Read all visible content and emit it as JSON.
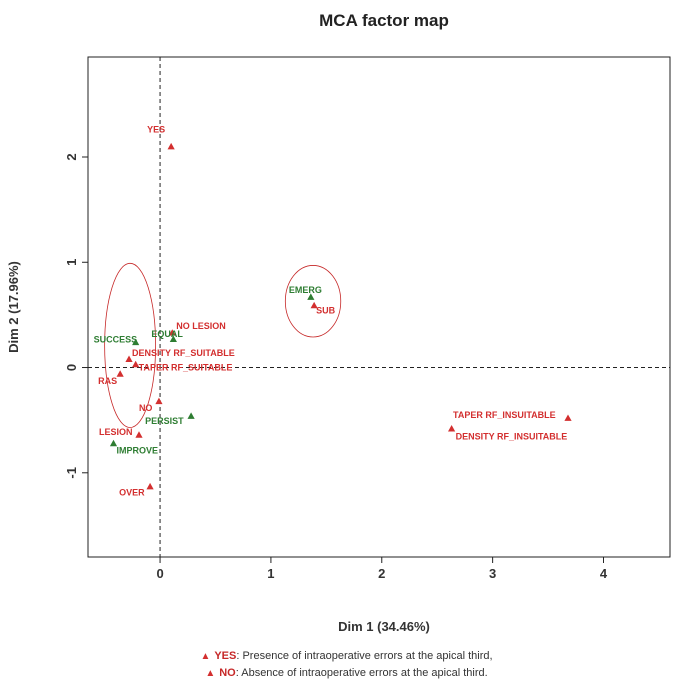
{
  "chart_data": {
    "type": "scatter",
    "title": "MCA factor map",
    "xlabel": "Dim 1 (34.46%)",
    "ylabel": "Dim 2 (17.96%)",
    "xlim": [
      -0.65,
      4.6
    ],
    "ylim": [
      -1.8,
      2.95
    ],
    "xticks": [
      0,
      1,
      2,
      3,
      4
    ],
    "yticks": [
      -1,
      0,
      1,
      2
    ],
    "reference_lines": {
      "x": 0,
      "y": 0
    },
    "colors": {
      "red": "#d32f2f",
      "green": "#2e7d32",
      "ellipse": "#c62828"
    },
    "points": [
      {
        "label": "YES",
        "x": 0.1,
        "y": 2.1,
        "color": "red"
      },
      {
        "label": "EMERG",
        "x": 1.36,
        "y": 0.67,
        "color": "green"
      },
      {
        "label": "SUB",
        "x": 1.39,
        "y": 0.59,
        "color": "red"
      },
      {
        "label": "NO LESION",
        "x": 0.11,
        "y": 0.33,
        "color": "red"
      },
      {
        "label": "SUCCESS",
        "x": -0.22,
        "y": 0.24,
        "color": "green"
      },
      {
        "label": "EQUAL",
        "x": 0.12,
        "y": 0.27,
        "color": "green"
      },
      {
        "label": "DENSITY RF_SUITABLE",
        "x": -0.28,
        "y": 0.08,
        "color": "red"
      },
      {
        "label": "TAPER RF_SUITABLE",
        "x": -0.22,
        "y": 0.03,
        "color": "red"
      },
      {
        "label": "RAS",
        "x": -0.36,
        "y": -0.06,
        "color": "red"
      },
      {
        "label": "NO",
        "x": -0.01,
        "y": -0.32,
        "color": "red"
      },
      {
        "label": "PERSIST",
        "x": 0.28,
        "y": -0.46,
        "color": "green"
      },
      {
        "label": "TAPER RF_INSUITABLE",
        "x": 3.68,
        "y": -0.48,
        "color": "red"
      },
      {
        "label": "DENSITY RF_INSUITABLE",
        "x": 2.63,
        "y": -0.58,
        "color": "red"
      },
      {
        "label": "LESION",
        "x": -0.19,
        "y": -0.64,
        "color": "red"
      },
      {
        "label": "IMPROVE",
        "x": -0.42,
        "y": -0.72,
        "color": "green"
      },
      {
        "label": "OVER",
        "x": -0.09,
        "y": -1.13,
        "color": "red"
      }
    ],
    "ellipses": [
      {
        "cx": 1.38,
        "cy": 0.63,
        "rx": 0.25,
        "ry": 0.34
      },
      {
        "cx": -0.27,
        "cy": 0.21,
        "rx": 0.23,
        "ry": 0.78
      }
    ]
  },
  "legend": [
    {
      "key": "YES",
      "text": ": Presence of intraoperative errors at the apical third,"
    },
    {
      "key": "NO",
      "text": ": Absence of intraoperative errors at the apical third."
    }
  ]
}
